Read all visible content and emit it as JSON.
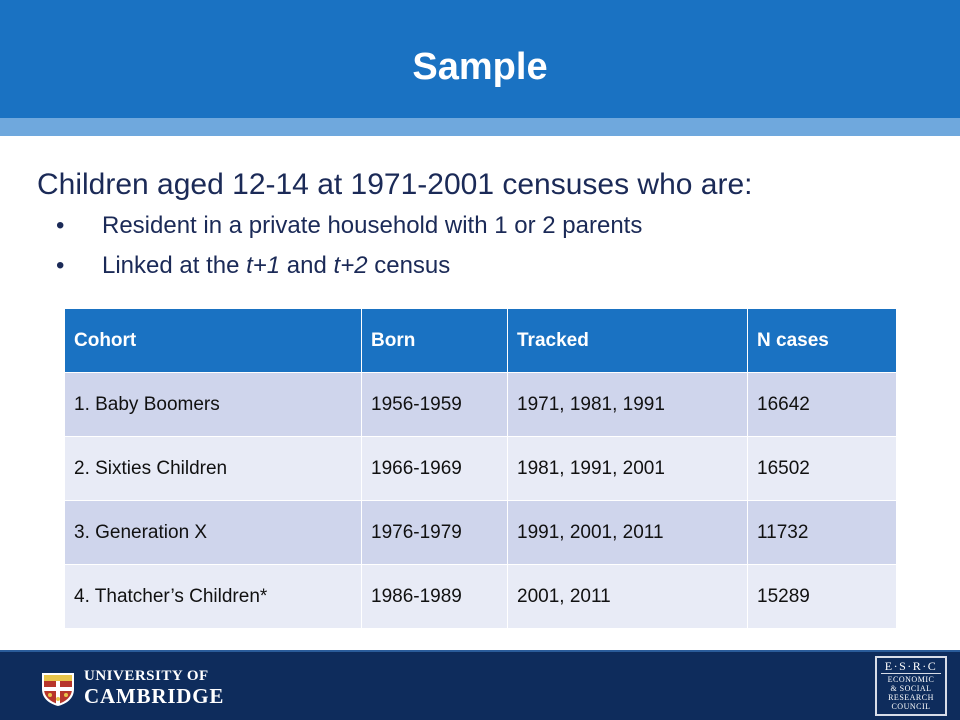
{
  "header": {
    "title": "Sample"
  },
  "intro": "Children aged 12-14 at 1971-2001 censuses who are:",
  "bullets": [
    {
      "symbol": "•",
      "text": "Resident in a private household with 1 or 2 parents"
    },
    {
      "symbol": "•",
      "text_before": "Linked at the ",
      "em1": "t+1",
      "text_mid": " and ",
      "em2": "t+2",
      "text_after": " census"
    }
  ],
  "table": {
    "columns": [
      "Cohort",
      "Born",
      "Tracked",
      "N cases"
    ],
    "rows": [
      [
        "1. Baby Boomers",
        "1956-1959",
        "1971, 1981, 1991",
        "16642"
      ],
      [
        "2. Sixties Children",
        "1966-1969",
        "1981, 1991, 2001",
        "16502"
      ],
      [
        "3. Generation X",
        "1976-1979",
        "1991, 2001, 2011",
        "11732"
      ],
      [
        "4. Thatcher’s Children*",
        "1986-1989",
        "2001, 2011",
        "15289"
      ]
    ]
  },
  "footer": {
    "university_line1": "UNIVERSITY OF",
    "university_line2": "CAMBRIDGE",
    "esrc_name": "E·S·R·C",
    "esrc_lines": [
      "ECONOMIC",
      "& SOCIAL",
      "RESEARCH",
      "COUNCIL"
    ]
  },
  "colors": {
    "title_bar": "#1a72c2",
    "title_stripe": "#6fa8dd",
    "footer": "#0e2c5c",
    "text": "#1b2a57",
    "row_dark": "#cfd5ec",
    "row_light": "#e8ebf6"
  },
  "icons": [
    "university-crest-icon",
    "esrc-logo"
  ]
}
